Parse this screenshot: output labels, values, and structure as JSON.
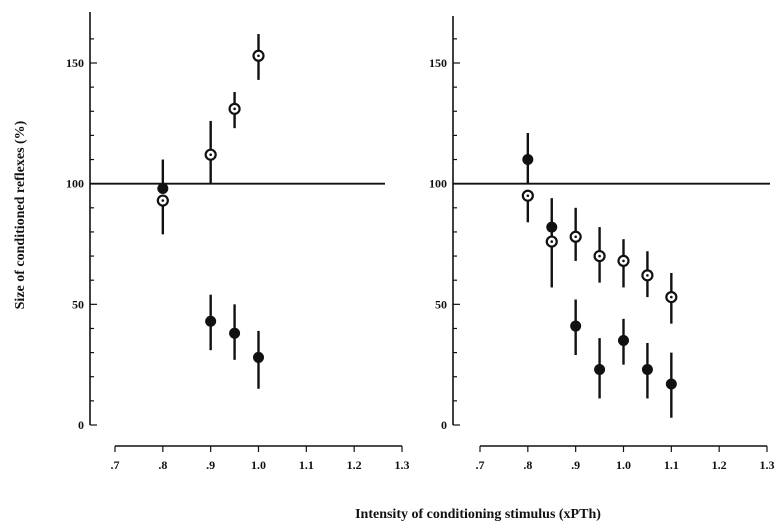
{
  "colors": {
    "ink": "#111111",
    "paper": "#ffffff"
  },
  "figure": {
    "ylabel": "Size of conditioned reflexes (%)",
    "xlabel": "Intensity of conditioning stimulus (xPTh)"
  },
  "chart_data": [
    {
      "type": "scatter",
      "panel": "left",
      "xlim": [
        0.7,
        1.3
      ],
      "ylim": [
        0,
        160
      ],
      "x_ticks": [
        ".7",
        ".8",
        ".9",
        "1.0",
        "1.1",
        "1.2",
        "1.3"
      ],
      "y_ticks": [
        "0",
        "50",
        "100",
        "150"
      ],
      "reference_line": 100,
      "error_bars": "vertical",
      "series": [
        {
          "marker": "open-circle-with-dot",
          "points": [
            {
              "x": 0.8,
              "y": 93,
              "lo": 79,
              "hi": 93
            },
            {
              "x": 0.9,
              "y": 112,
              "lo": 100,
              "hi": 126
            },
            {
              "x": 0.95,
              "y": 131,
              "lo": 123,
              "hi": 138
            },
            {
              "x": 1.0,
              "y": 153,
              "lo": 143,
              "hi": 162
            }
          ]
        },
        {
          "marker": "filled-circle",
          "points": [
            {
              "x": 0.8,
              "y": 98,
              "lo": 98,
              "hi": 110
            },
            {
              "x": 0.9,
              "y": 43,
              "lo": 31,
              "hi": 54
            },
            {
              "x": 0.95,
              "y": 38,
              "lo": 27,
              "hi": 50
            },
            {
              "x": 1.0,
              "y": 28,
              "lo": 15,
              "hi": 39
            }
          ]
        }
      ]
    },
    {
      "type": "scatter",
      "panel": "right",
      "xlim": [
        0.7,
        1.3
      ],
      "ylim": [
        0,
        160
      ],
      "x_ticks": [
        ".7",
        ".8",
        ".9",
        "1.0",
        "1.1",
        "1.2",
        "1.3"
      ],
      "y_ticks": [
        "0",
        "50",
        "100",
        "150"
      ],
      "reference_line": 100,
      "error_bars": "vertical",
      "series": [
        {
          "marker": "open-circle-with-dot",
          "points": [
            {
              "x": 0.8,
              "y": 95,
              "lo": 84,
              "hi": 95
            },
            {
              "x": 0.85,
              "y": 76,
              "lo": 57,
              "hi": 76
            },
            {
              "x": 0.9,
              "y": 78,
              "lo": 68,
              "hi": 90
            },
            {
              "x": 0.95,
              "y": 70,
              "lo": 59,
              "hi": 82
            },
            {
              "x": 1.0,
              "y": 68,
              "lo": 57,
              "hi": 77
            },
            {
              "x": 1.05,
              "y": 62,
              "lo": 53,
              "hi": 72
            },
            {
              "x": 1.1,
              "y": 53,
              "lo": 42,
              "hi": 63
            }
          ]
        },
        {
          "marker": "filled-circle",
          "points": [
            {
              "x": 0.8,
              "y": 110,
              "lo": 100,
              "hi": 121
            },
            {
              "x": 0.85,
              "y": 82,
              "lo": 76,
              "hi": 94
            },
            {
              "x": 0.9,
              "y": 41,
              "lo": 29,
              "hi": 52
            },
            {
              "x": 0.95,
              "y": 23,
              "lo": 11,
              "hi": 36
            },
            {
              "x": 1.0,
              "y": 35,
              "lo": 25,
              "hi": 44
            },
            {
              "x": 1.05,
              "y": 23,
              "lo": 11,
              "hi": 34
            },
            {
              "x": 1.1,
              "y": 17,
              "lo": 3,
              "hi": 30
            }
          ]
        }
      ]
    }
  ]
}
